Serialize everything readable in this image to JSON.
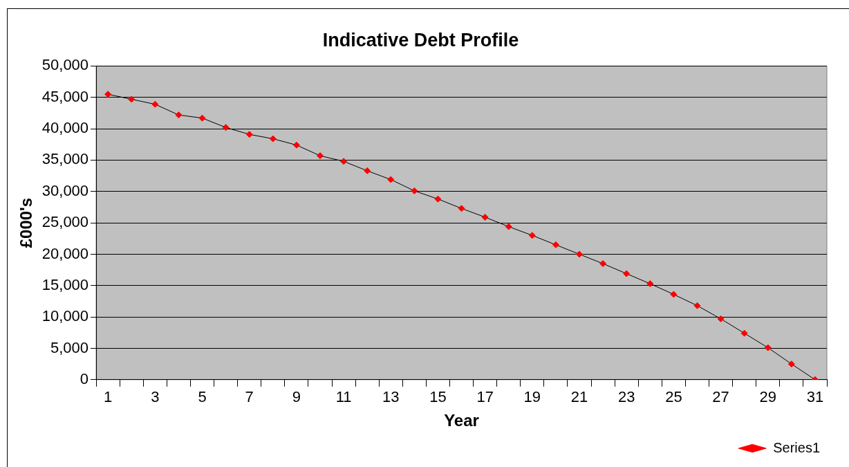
{
  "chart_data": {
    "type": "line",
    "title": "Indicative Debt Profile",
    "xlabel": "Year",
    "ylabel": "£000's",
    "x": [
      1,
      2,
      3,
      4,
      5,
      6,
      7,
      8,
      9,
      10,
      11,
      12,
      13,
      14,
      15,
      16,
      17,
      18,
      19,
      20,
      21,
      22,
      23,
      24,
      25,
      26,
      27,
      28,
      29,
      30,
      31
    ],
    "series": [
      {
        "name": "Series1",
        "color": "#ff0000",
        "values": [
          45500,
          44700,
          43900,
          42200,
          41700,
          40200,
          39100,
          38400,
          37400,
          35700,
          34800,
          33300,
          31900,
          30100,
          28800,
          27300,
          25900,
          24400,
          23000,
          21500,
          20000,
          18500,
          16900,
          15300,
          13600,
          11800,
          9700,
          7400,
          5100,
          2500,
          0
        ]
      }
    ],
    "xlim": [
      0.5,
      31.5
    ],
    "xticks": [
      {
        "value": 0.5,
        "label": null
      },
      1,
      {
        "value": 1.5,
        "label": null
      },
      {
        "value": 2.5,
        "label": null
      },
      3,
      {
        "value": 3.5,
        "label": null
      },
      {
        "value": 4.5,
        "label": null
      },
      5,
      {
        "value": 5.5,
        "label": null
      },
      {
        "value": 6.5,
        "label": null
      },
      7,
      {
        "value": 7.5,
        "label": null
      },
      {
        "value": 8.5,
        "label": null
      },
      9,
      {
        "value": 9.5,
        "label": null
      },
      {
        "value": 10.5,
        "label": null
      },
      11,
      {
        "value": 11.5,
        "label": null
      },
      {
        "value": 12.5,
        "label": null
      },
      13,
      {
        "value": 13.5,
        "label": null
      },
      {
        "value": 14.5,
        "label": null
      },
      15,
      {
        "value": 15.5,
        "label": null
      },
      {
        "value": 16.5,
        "label": null
      },
      17,
      {
        "value": 17.5,
        "label": null
      },
      {
        "value": 18.5,
        "label": null
      },
      19,
      {
        "value": 19.5,
        "label": null
      },
      {
        "value": 20.5,
        "label": null
      },
      21,
      {
        "value": 21.5,
        "label": null
      },
      {
        "value": 22.5,
        "label": null
      },
      23,
      {
        "value": 23.5,
        "label": null
      },
      {
        "value": 24.5,
        "label": null
      },
      25,
      {
        "value": 25.5,
        "label": null
      },
      {
        "value": 26.5,
        "label": null
      },
      27,
      {
        "value": 27.5,
        "label": null
      },
      {
        "value": 28.5,
        "label": null
      },
      29,
      {
        "value": 29.5,
        "label": null
      },
      {
        "value": 30.5,
        "label": null
      },
      31,
      {
        "value": 31.5,
        "label": null
      }
    ],
    "ylim": [
      0,
      50000
    ],
    "yticks": [
      {
        "value": 0,
        "label": "0"
      },
      {
        "value": 5000,
        "label": "5,000"
      },
      {
        "value": 10000,
        "label": "10,000"
      },
      {
        "value": 15000,
        "label": "15,000"
      },
      {
        "value": 20000,
        "label": "20,000"
      },
      {
        "value": 25000,
        "label": "25,000"
      },
      {
        "value": 30000,
        "label": "30,000"
      },
      {
        "value": 35000,
        "label": "35,000"
      },
      {
        "value": 40000,
        "label": "40,000"
      },
      {
        "value": 45000,
        "label": "45,000"
      },
      {
        "value": 50000,
        "label": "50,000"
      }
    ],
    "grid": "y",
    "legend": "bottom right",
    "marker": "diamond",
    "line_style": "solid"
  }
}
